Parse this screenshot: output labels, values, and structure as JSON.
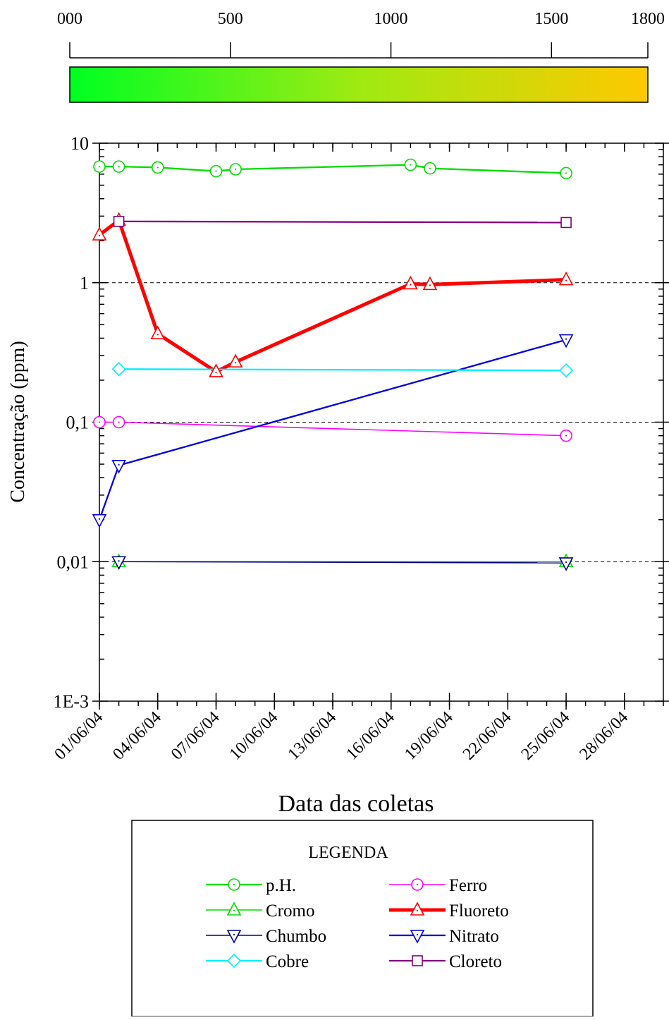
{
  "chart_data": {
    "type": "line",
    "scale_bar": {
      "ticks": [
        {
          "label": "000",
          "value": 0
        },
        {
          "label": "500",
          "value": 500
        },
        {
          "label": "1000",
          "value": 1000
        },
        {
          "label": "1500",
          "value": 1500
        },
        {
          "label": "1800",
          "value": 1800
        }
      ],
      "range": [
        0,
        1800
      ],
      "gradient_colors": [
        "#00ff22",
        "#9fea12",
        "#ffc800"
      ]
    },
    "xlabel": "Data das coletas",
    "ylabel": "Concentração (ppm)",
    "y_scale": "log",
    "ylim": [
      0.001,
      10
    ],
    "xlim": [
      "2004-06-01",
      "2004-06-30"
    ],
    "y_ticks": [
      {
        "label": "1E-3",
        "value": 0.001
      },
      {
        "label": "0,01",
        "value": 0.01
      },
      {
        "label": "0,1",
        "value": 0.1
      },
      {
        "label": "1",
        "value": 1
      },
      {
        "label": "10",
        "value": 10
      }
    ],
    "x_ticks": [
      {
        "label": "01/06/04",
        "value": "2004-06-01"
      },
      {
        "label": "04/06/04",
        "value": "2004-06-04"
      },
      {
        "label": "07/06/04",
        "value": "2004-06-07"
      },
      {
        "label": "10/06/04",
        "value": "2004-06-10"
      },
      {
        "label": "13/06/04",
        "value": "2004-06-13"
      },
      {
        "label": "16/06/04",
        "value": "2004-06-16"
      },
      {
        "label": "19/06/04",
        "value": "2004-06-19"
      },
      {
        "label": "22/06/04",
        "value": "2004-06-22"
      },
      {
        "label": "25/06/04",
        "value": "2004-06-25"
      },
      {
        "label": "28/06/04",
        "value": "2004-06-28"
      }
    ],
    "gridlines_y": [
      0.01,
      0.1,
      1
    ],
    "legend": {
      "title": "LEGENDA",
      "placement": "bottom"
    },
    "series": [
      {
        "name": "p.H.",
        "color": "#00dd00",
        "marker": "circle",
        "line_width": "medium",
        "points": [
          {
            "x": "2004-06-01",
            "y": 6.8
          },
          {
            "x": "2004-06-02",
            "y": 6.8
          },
          {
            "x": "2004-06-04",
            "y": 6.7
          },
          {
            "x": "2004-06-07",
            "y": 6.3
          },
          {
            "x": "2004-06-08",
            "y": 6.5
          },
          {
            "x": "2004-06-17",
            "y": 7.0
          },
          {
            "x": "2004-06-18",
            "y": 6.6
          },
          {
            "x": "2004-06-25",
            "y": 6.1
          }
        ]
      },
      {
        "name": "Ferro",
        "color": "#ff00ff",
        "marker": "circle",
        "line_width": "thin",
        "points": [
          {
            "x": "2004-06-01",
            "y": 0.1
          },
          {
            "x": "2004-06-02",
            "y": 0.1
          },
          {
            "x": "2004-06-25",
            "y": 0.08
          }
        ]
      },
      {
        "name": "Cromo",
        "color": "#00dd00",
        "marker": "triangle-up",
        "line_width": "thin",
        "points": [
          {
            "x": "2004-06-02",
            "y": 0.01
          },
          {
            "x": "2004-06-25",
            "y": 0.01
          }
        ]
      },
      {
        "name": "Fluoreto",
        "color": "#ff0000",
        "marker": "triangle-up",
        "line_width": "thick",
        "points": [
          {
            "x": "2004-06-01",
            "y": 2.2
          },
          {
            "x": "2004-06-02",
            "y": 2.8
          },
          {
            "x": "2004-06-04",
            "y": 0.43
          },
          {
            "x": "2004-06-07",
            "y": 0.23
          },
          {
            "x": "2004-06-08",
            "y": 0.27
          },
          {
            "x": "2004-06-17",
            "y": 0.98
          },
          {
            "x": "2004-06-18",
            "y": 0.97
          },
          {
            "x": "2004-06-25",
            "y": 1.05
          }
        ]
      },
      {
        "name": "Chumbo",
        "color": "#000080",
        "marker": "triangle-down",
        "line_width": "thin",
        "points": [
          {
            "x": "2004-06-02",
            "y": 0.01
          },
          {
            "x": "2004-06-25",
            "y": 0.0098
          }
        ]
      },
      {
        "name": "Nitrato",
        "color": "#0000dd",
        "marker": "triangle-down",
        "line_width": "medium",
        "points": [
          {
            "x": "2004-06-01",
            "y": 0.02
          },
          {
            "x": "2004-06-02",
            "y": 0.049
          },
          {
            "x": "2004-06-25",
            "y": 0.39
          }
        ]
      },
      {
        "name": "Cobre",
        "color": "#00eeff",
        "marker": "diamond",
        "line_width": "medium",
        "points": [
          {
            "x": "2004-06-02",
            "y": 0.24
          },
          {
            "x": "2004-06-25",
            "y": 0.235
          }
        ]
      },
      {
        "name": "Cloreto",
        "color": "#800080",
        "marker": "square",
        "line_width": "medium",
        "points": [
          {
            "x": "2004-06-02",
            "y": 2.75
          },
          {
            "x": "2004-06-25",
            "y": 2.7
          }
        ]
      }
    ]
  }
}
